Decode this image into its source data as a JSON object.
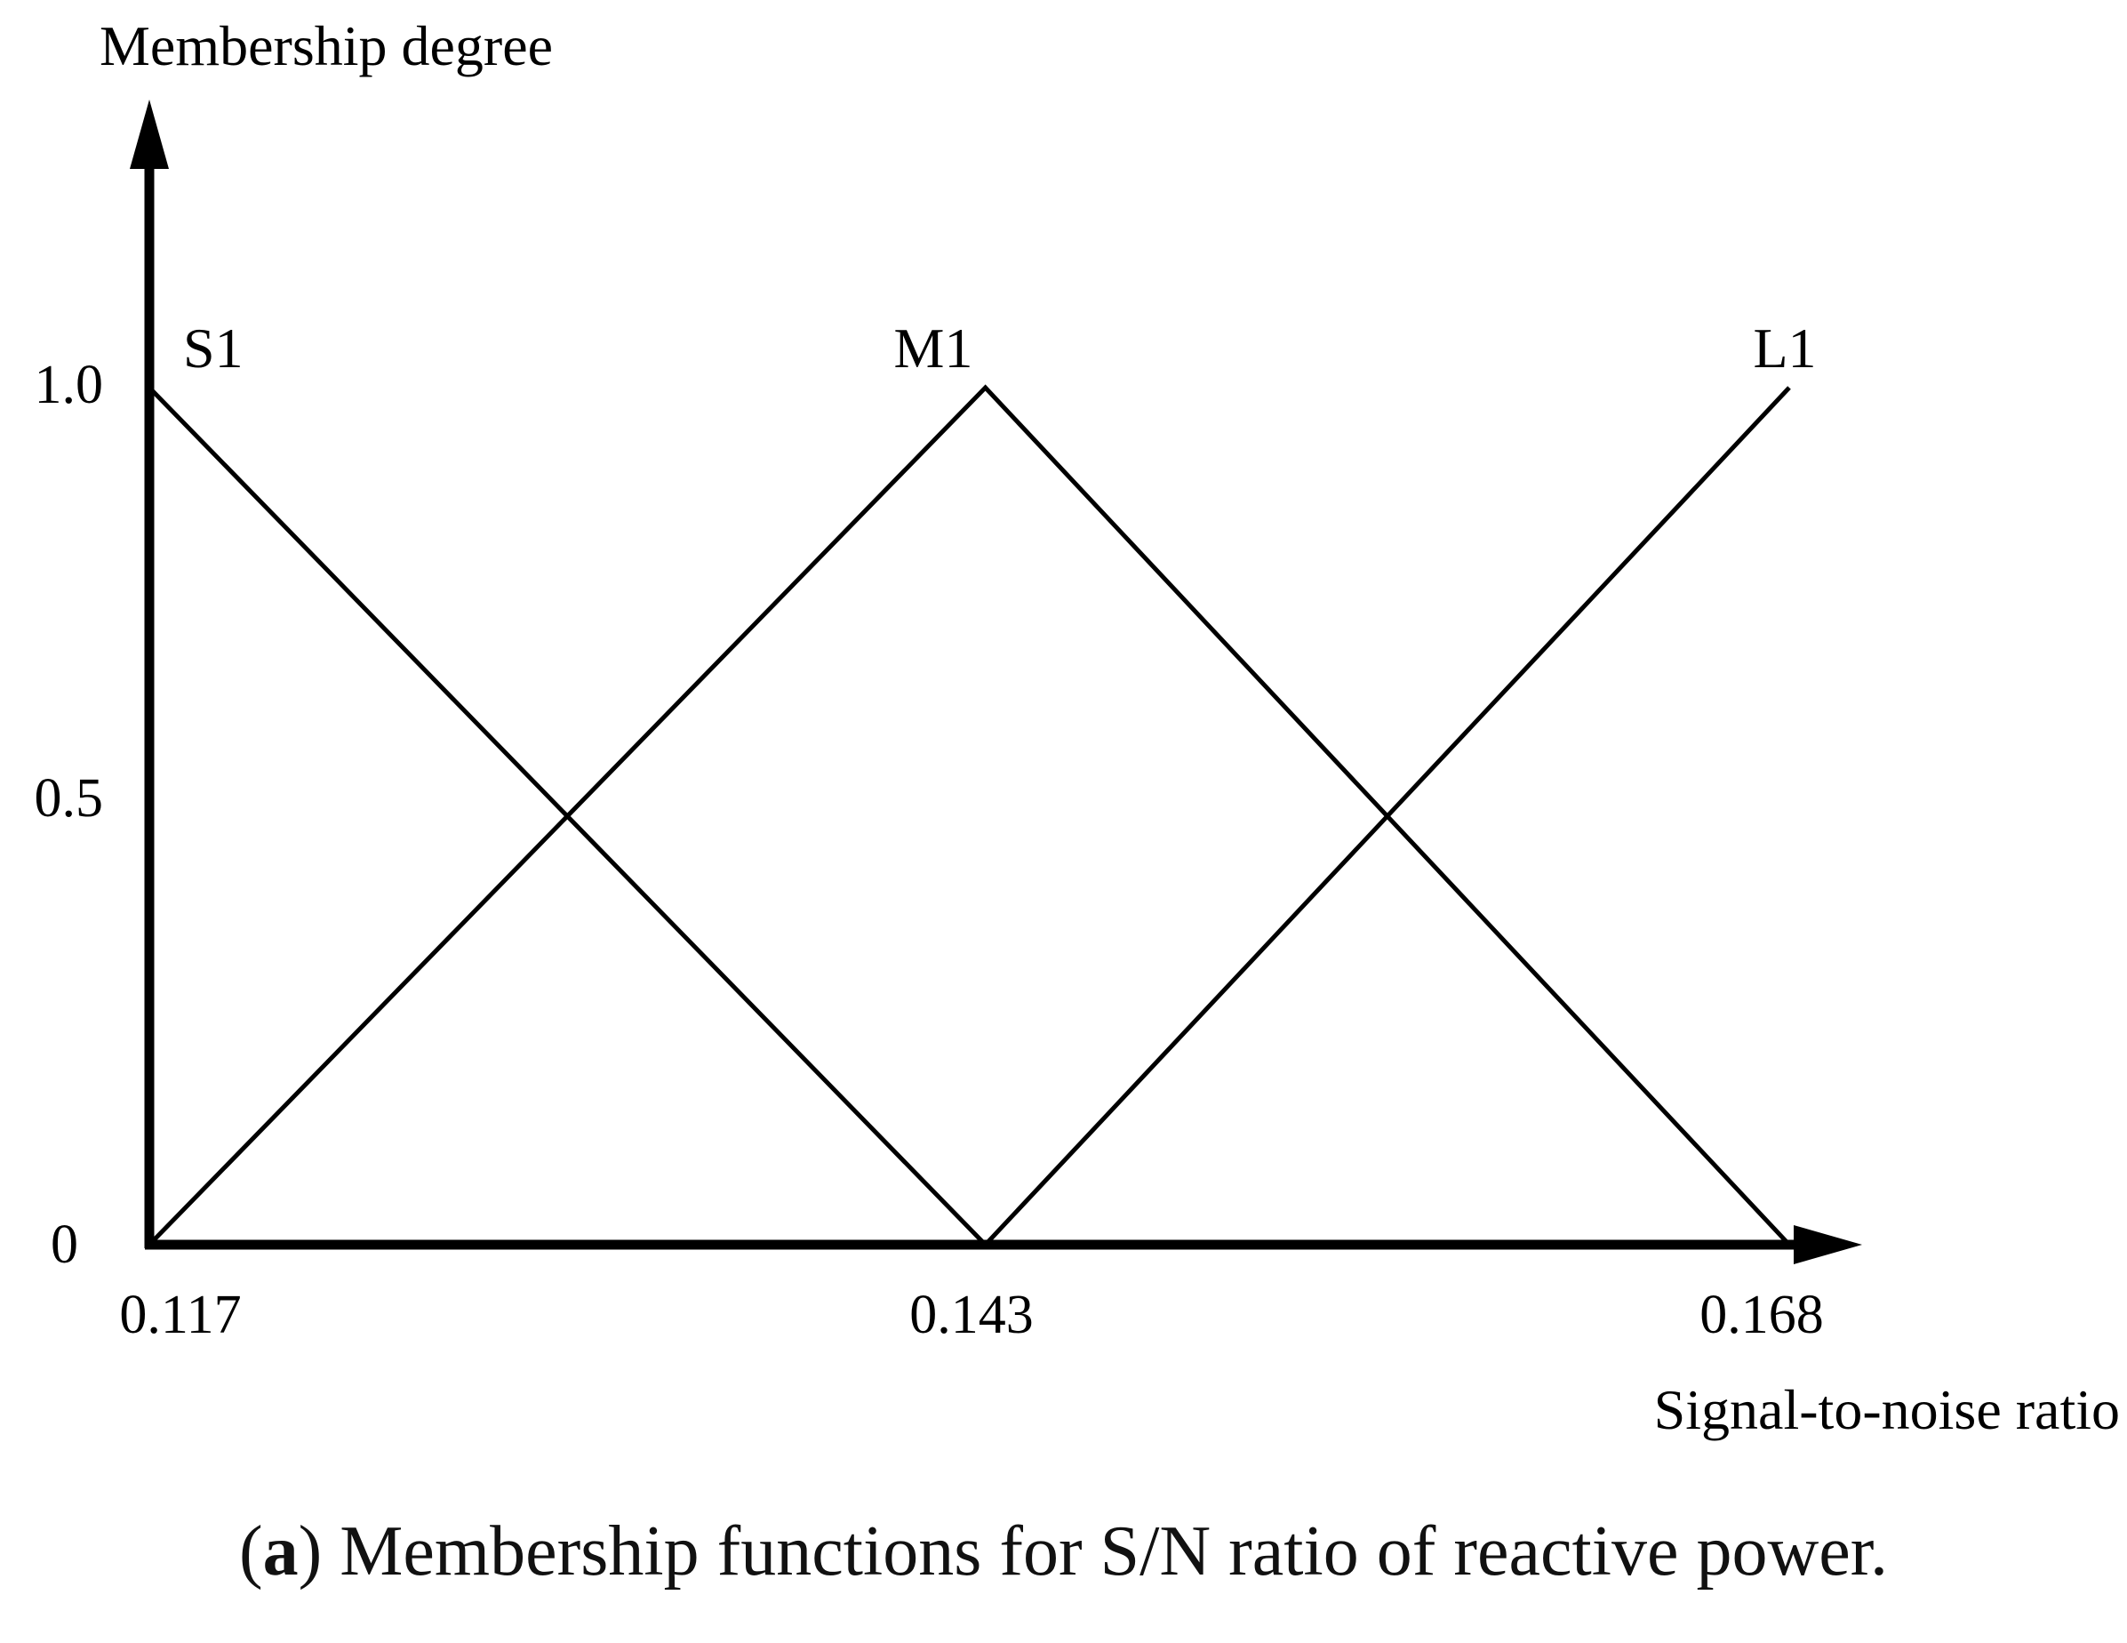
{
  "chart_data": {
    "type": "line",
    "ylabel": "Membership degree",
    "xlabel": "Signal-to-noise ratio",
    "xlim": [
      0.117,
      0.168
    ],
    "ylim": [
      0,
      1.0
    ],
    "x_ticks": [
      "0.117",
      "0.143",
      "0.168"
    ],
    "y_ticks": [
      "0",
      "0.5",
      "1.0"
    ],
    "series": [
      {
        "name": "S1",
        "x": [
          0.117,
          0.143
        ],
        "y": [
          1.0,
          0.0
        ]
      },
      {
        "name": "M1",
        "x": [
          0.117,
          0.143,
          0.168
        ],
        "y": [
          0.0,
          1.0,
          0.0
        ]
      },
      {
        "name": "L1",
        "x": [
          0.143,
          0.168
        ],
        "y": [
          0.0,
          1.0
        ]
      }
    ],
    "grid": false,
    "legend": "none"
  },
  "caption": {
    "label": "a",
    "text": "Membership functions for S/N ratio of reactive power."
  }
}
